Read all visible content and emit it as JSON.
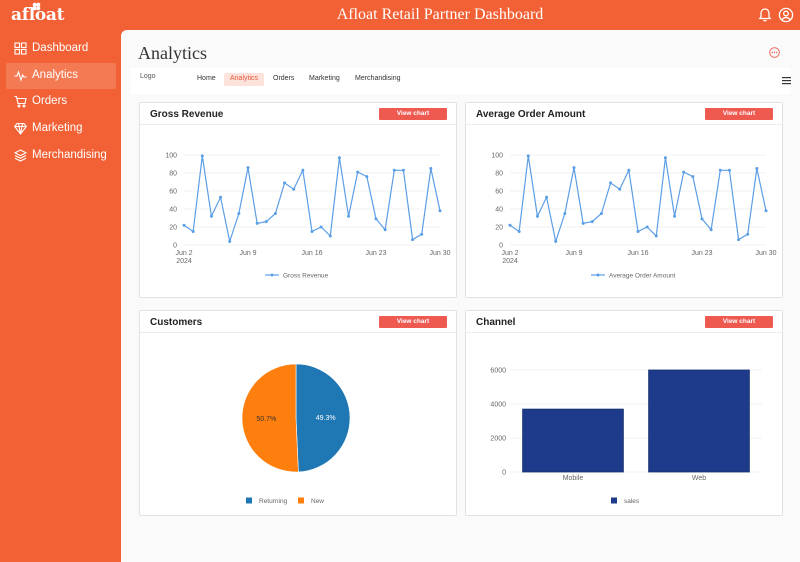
{
  "header": {
    "brand": "afloat",
    "title": "Afloat Retail Partner Dashboard",
    "icons": [
      "bell-icon",
      "user-icon"
    ]
  },
  "sidebar": {
    "items": [
      {
        "label": "Dashboard",
        "icon": "grid-icon",
        "active": false
      },
      {
        "label": "Analytics",
        "icon": "activity-icon",
        "active": true
      },
      {
        "label": "Orders",
        "icon": "cart-icon",
        "active": false
      },
      {
        "label": "Marketing",
        "icon": "diamond-icon",
        "active": false
      },
      {
        "label": "Merchandising",
        "icon": "layers-icon",
        "active": false
      }
    ]
  },
  "page": {
    "title": "Analytics",
    "logo_alt": "Logo",
    "tabs": [
      {
        "label": "Home",
        "active": false
      },
      {
        "label": "Analytics",
        "active": true
      },
      {
        "label": "Orders",
        "active": false
      },
      {
        "label": "Marketing",
        "active": false
      },
      {
        "label": "Merchandising",
        "active": false
      }
    ]
  },
  "cards": {
    "gross_revenue": {
      "title": "Gross Revenue",
      "button": "View chart"
    },
    "avg_order": {
      "title": "Average Order Amount",
      "button": "View chart"
    },
    "customers": {
      "title": "Customers",
      "button": "View chart"
    },
    "channel": {
      "title": "Channel",
      "button": "View chart"
    }
  },
  "colors": {
    "accent": "#f26135",
    "button": "#ef5a50",
    "line": "#5b9ee6",
    "returning": "#1f77b4",
    "new": "#ff7f0e",
    "bar": "#1e3a8a"
  },
  "chart_data": [
    {
      "type": "line",
      "name": "gross_revenue",
      "series": [
        {
          "name": "Gross Revenue",
          "values": [
            22,
            15,
            99,
            32,
            53,
            4,
            35,
            86,
            24,
            26,
            35,
            69,
            62,
            83,
            15,
            20,
            10,
            97,
            32,
            81,
            76,
            29,
            17,
            83,
            83,
            6,
            12,
            85,
            38
          ]
        }
      ],
      "x": [
        "Jun 2",
        "Jun 3",
        "Jun 4",
        "Jun 5",
        "Jun 6",
        "Jun 7",
        "Jun 8",
        "Jun 9",
        "Jun 10",
        "Jun 11",
        "Jun 12",
        "Jun 13",
        "Jun 14",
        "Jun 15",
        "Jun 16",
        "Jun 17",
        "Jun 18",
        "Jun 19",
        "Jun 20",
        "Jun 21",
        "Jun 22",
        "Jun 23",
        "Jun 24",
        "Jun 25",
        "Jun 26",
        "Jun 27",
        "Jun 28",
        "Jun 29",
        "Jun 30"
      ],
      "xticks": [
        "Jun 2",
        "Jun 9",
        "Jun 16",
        "Jun 23",
        "Jun 30"
      ],
      "xtick_year": "2024",
      "yticks": [
        0,
        20,
        40,
        60,
        80,
        100
      ],
      "ylim": [
        0,
        100
      ],
      "grid": true,
      "legend": "bottom"
    },
    {
      "type": "line",
      "name": "avg_order",
      "series": [
        {
          "name": "Average Order Amount",
          "values": [
            22,
            15,
            99,
            32,
            53,
            4,
            35,
            86,
            24,
            26,
            35,
            69,
            62,
            83,
            15,
            20,
            10,
            97,
            32,
            81,
            76,
            29,
            17,
            83,
            83,
            6,
            12,
            85,
            38
          ]
        }
      ],
      "x": [
        "Jun 2",
        "Jun 3",
        "Jun 4",
        "Jun 5",
        "Jun 6",
        "Jun 7",
        "Jun 8",
        "Jun 9",
        "Jun 10",
        "Jun 11",
        "Jun 12",
        "Jun 13",
        "Jun 14",
        "Jun 15",
        "Jun 16",
        "Jun 17",
        "Jun 18",
        "Jun 19",
        "Jun 20",
        "Jun 21",
        "Jun 22",
        "Jun 23",
        "Jun 24",
        "Jun 25",
        "Jun 26",
        "Jun 27",
        "Jun 28",
        "Jun 29",
        "Jun 30"
      ],
      "xticks": [
        "Jun 2",
        "Jun 9",
        "Jun 16",
        "Jun 23",
        "Jun 30"
      ],
      "xtick_year": "2024",
      "yticks": [
        0,
        20,
        40,
        60,
        80,
        100
      ],
      "ylim": [
        0,
        100
      ],
      "grid": true,
      "legend": "bottom"
    },
    {
      "type": "pie",
      "name": "customers",
      "labels": [
        "Returning",
        "New"
      ],
      "values": [
        49.3,
        50.7
      ],
      "value_labels": [
        "49.3%",
        "50.7%"
      ],
      "legend": "bottom"
    },
    {
      "type": "bar",
      "name": "channel",
      "categories": [
        "Mobile",
        "Web"
      ],
      "series": [
        {
          "name": "sales",
          "values": [
            3700,
            6000
          ]
        }
      ],
      "yticks": [
        0,
        2000,
        4000,
        6000
      ],
      "ylim": [
        0,
        6000
      ],
      "grid": true,
      "legend": "bottom"
    }
  ]
}
